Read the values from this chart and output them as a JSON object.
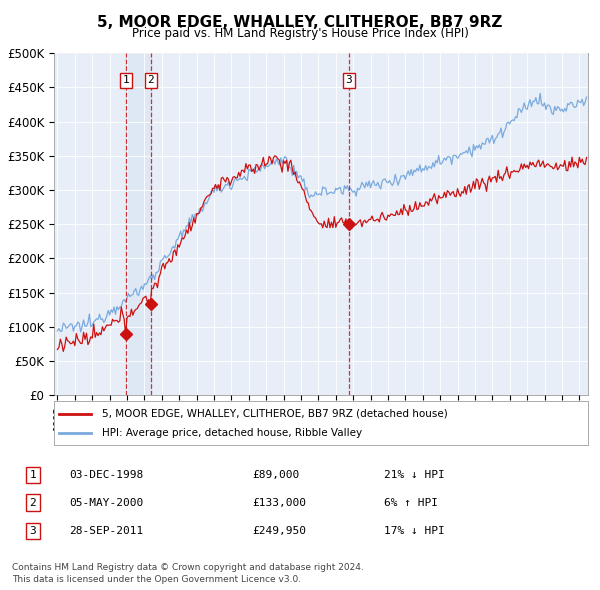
{
  "title": "5, MOOR EDGE, WHALLEY, CLITHEROE, BB7 9RZ",
  "subtitle": "Price paid vs. HM Land Registry's House Price Index (HPI)",
  "legend_line1": "5, MOOR EDGE, WHALLEY, CLITHEROE, BB7 9RZ (detached house)",
  "legend_line2": "HPI: Average price, detached house, Ribble Valley",
  "footer1": "Contains HM Land Registry data © Crown copyright and database right 2024.",
  "footer2": "This data is licensed under the Open Government Licence v3.0.",
  "transactions": [
    {
      "num": 1,
      "date": "03-DEC-1998",
      "price": 89000,
      "rel": "21% ↓ HPI",
      "year": 1998.92
    },
    {
      "num": 2,
      "date": "05-MAY-2000",
      "price": 133000,
      "rel": "6% ↑ HPI",
      "year": 2000.37
    },
    {
      "num": 3,
      "date": "28-SEP-2011",
      "price": 249950,
      "rel": "17% ↓ HPI",
      "year": 2011.74
    }
  ],
  "hpi_color": "#7aaadd",
  "price_color": "#cc1111",
  "marker_color": "#cc1111",
  "vline_color": "#cc1111",
  "shade_color": "#dde8f5",
  "plot_bg": "#e8eef8",
  "ylim": [
    0,
    500000
  ],
  "yticks": [
    0,
    50000,
    100000,
    150000,
    200000,
    250000,
    300000,
    350000,
    400000,
    450000,
    500000
  ],
  "ytick_labels": [
    "£0",
    "£50K",
    "£100K",
    "£150K",
    "£200K",
    "£250K",
    "£300K",
    "£350K",
    "£400K",
    "£450K",
    "£500K"
  ],
  "xmin": 1994.8,
  "xmax": 2025.5
}
